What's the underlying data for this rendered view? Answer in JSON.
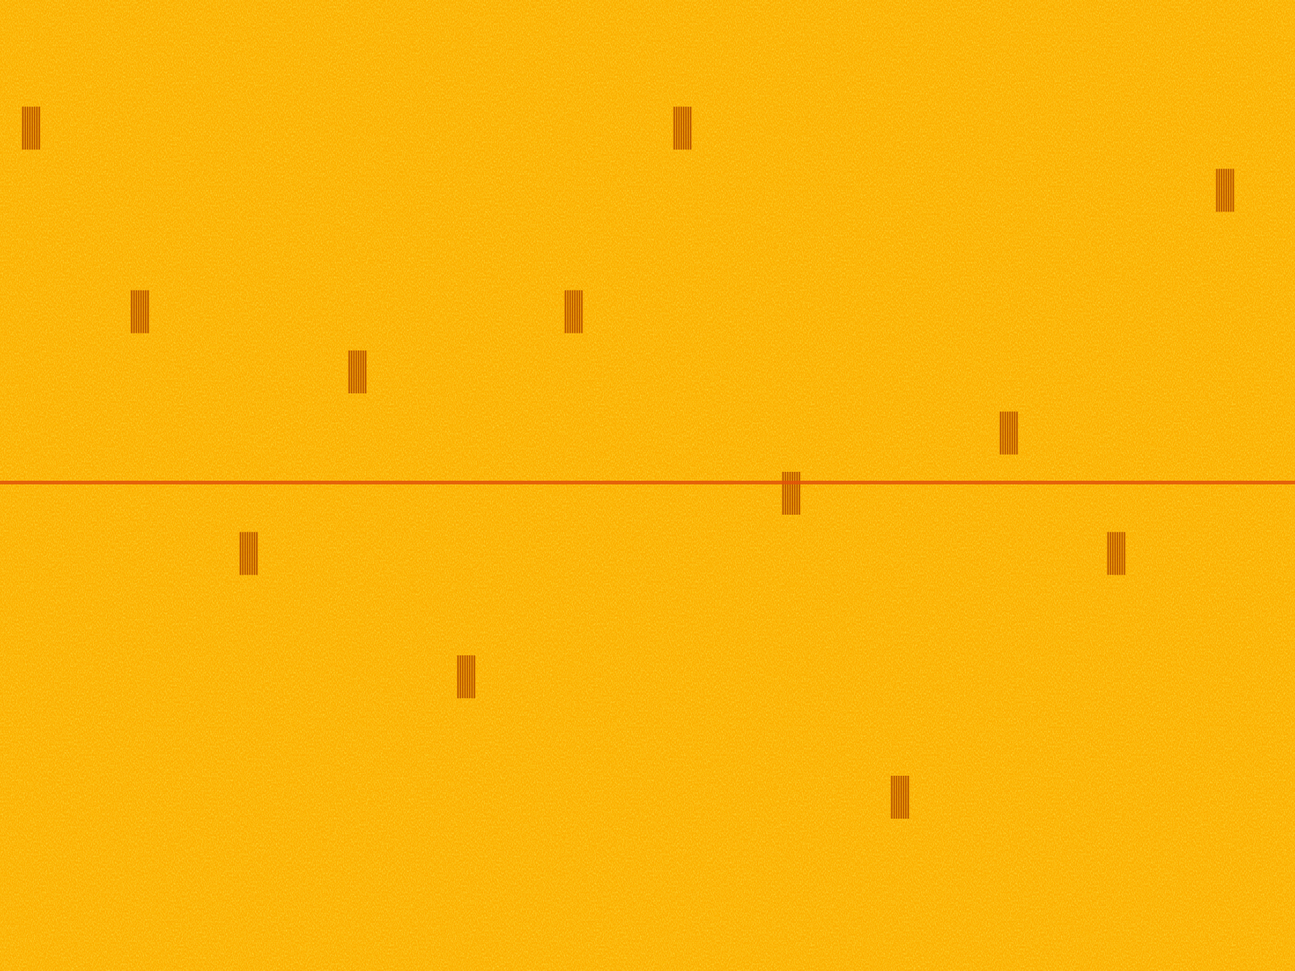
{
  "chart_data": {
    "type": "spectrogram",
    "xlim": [
      0,
      100
    ],
    "ylim": [
      0,
      100
    ],
    "tick_labels": false,
    "grid": false,
    "series": [
      {
        "type": "burst",
        "color": "#a84300",
        "x": [
          2.4,
          52.7,
          94.6,
          10.8,
          44.3,
          27.6,
          77.9,
          61.1,
          19.2,
          86.2,
          36.0,
          69.5
        ],
        "values": [
          86.8,
          86.8,
          80.4,
          67.9,
          67.9,
          61.7,
          55.4,
          49.2,
          43.0,
          43.0,
          30.3,
          17.9
        ]
      },
      {
        "type": "hline",
        "color": "#e2540a",
        "values": [
          50.3
        ]
      }
    ]
  }
}
